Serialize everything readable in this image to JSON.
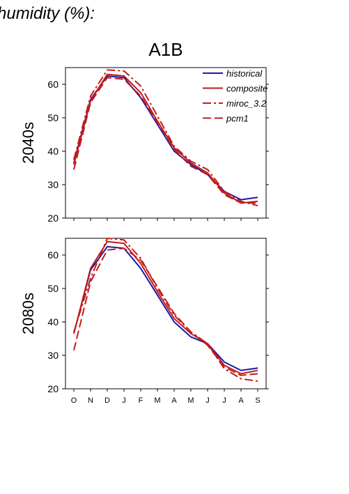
{
  "figure_title": "humidity (%):",
  "scenario_title": "A1B",
  "chart_data": [
    {
      "type": "line",
      "ylabel": "2040s",
      "ylim": [
        20,
        65
      ],
      "yticks": [
        20,
        30,
        40,
        50,
        60
      ],
      "categories": [
        "O",
        "N",
        "D",
        "J",
        "F",
        "M",
        "A",
        "M",
        "J",
        "J",
        "A",
        "S"
      ],
      "legend_position": "top-right",
      "series": [
        {
          "name": "historical",
          "color": "#1a1aaa",
          "style": "solid",
          "values": [
            36.5,
            55.5,
            62.5,
            62.0,
            56.0,
            48.0,
            40.0,
            36.0,
            33.0,
            28.0,
            25.5,
            26.2
          ]
        },
        {
          "name": "composite",
          "color": "#c41a1a",
          "style": "solid",
          "values": [
            36.0,
            55.0,
            63.0,
            62.5,
            57.5,
            49.0,
            41.0,
            36.5,
            33.5,
            27.5,
            24.5,
            25.0
          ]
        },
        {
          "name": "miroc_3.2",
          "color": "#c41a1a",
          "style": "dashdot",
          "values": [
            37.5,
            56.5,
            64.3,
            64.0,
            59.5,
            50.5,
            41.5,
            37.0,
            34.5,
            28.0,
            25.0,
            23.7
          ]
        },
        {
          "name": "pcm1",
          "color": "#c41a1a",
          "style": "dash",
          "values": [
            34.5,
            54.5,
            62.0,
            61.5,
            56.5,
            48.5,
            40.5,
            35.5,
            33.0,
            27.0,
            24.5,
            24.5
          ]
        }
      ]
    },
    {
      "type": "line",
      "ylabel": "2080s",
      "ylim": [
        20,
        65
      ],
      "yticks": [
        20,
        30,
        40,
        50,
        60
      ],
      "categories": [
        "O",
        "N",
        "D",
        "J",
        "F",
        "M",
        "A",
        "M",
        "J",
        "J",
        "A",
        "S"
      ],
      "series": [
        {
          "name": "historical",
          "color": "#1a1aaa",
          "style": "solid",
          "values": [
            36.5,
            55.5,
            62.5,
            62.0,
            56.0,
            48.0,
            40.0,
            35.5,
            33.5,
            28.0,
            25.5,
            26.2
          ]
        },
        {
          "name": "composite",
          "color": "#c41a1a",
          "style": "solid",
          "values": [
            36.5,
            56.0,
            64.0,
            63.5,
            57.5,
            49.0,
            41.0,
            36.5,
            33.5,
            27.0,
            24.5,
            25.5
          ]
        },
        {
          "name": "miroc_3.2",
          "color": "#c41a1a",
          "style": "dashdot",
          "values": [
            37.0,
            53.0,
            65.0,
            64.5,
            59.0,
            50.0,
            42.0,
            37.0,
            33.5,
            26.0,
            23.0,
            22.3
          ]
        },
        {
          "name": "pcm1",
          "color": "#c41a1a",
          "style": "dash",
          "values": [
            31.5,
            52.0,
            61.5,
            62.0,
            58.5,
            50.5,
            42.5,
            37.0,
            33.0,
            26.5,
            24.0,
            24.5
          ]
        }
      ]
    }
  ]
}
